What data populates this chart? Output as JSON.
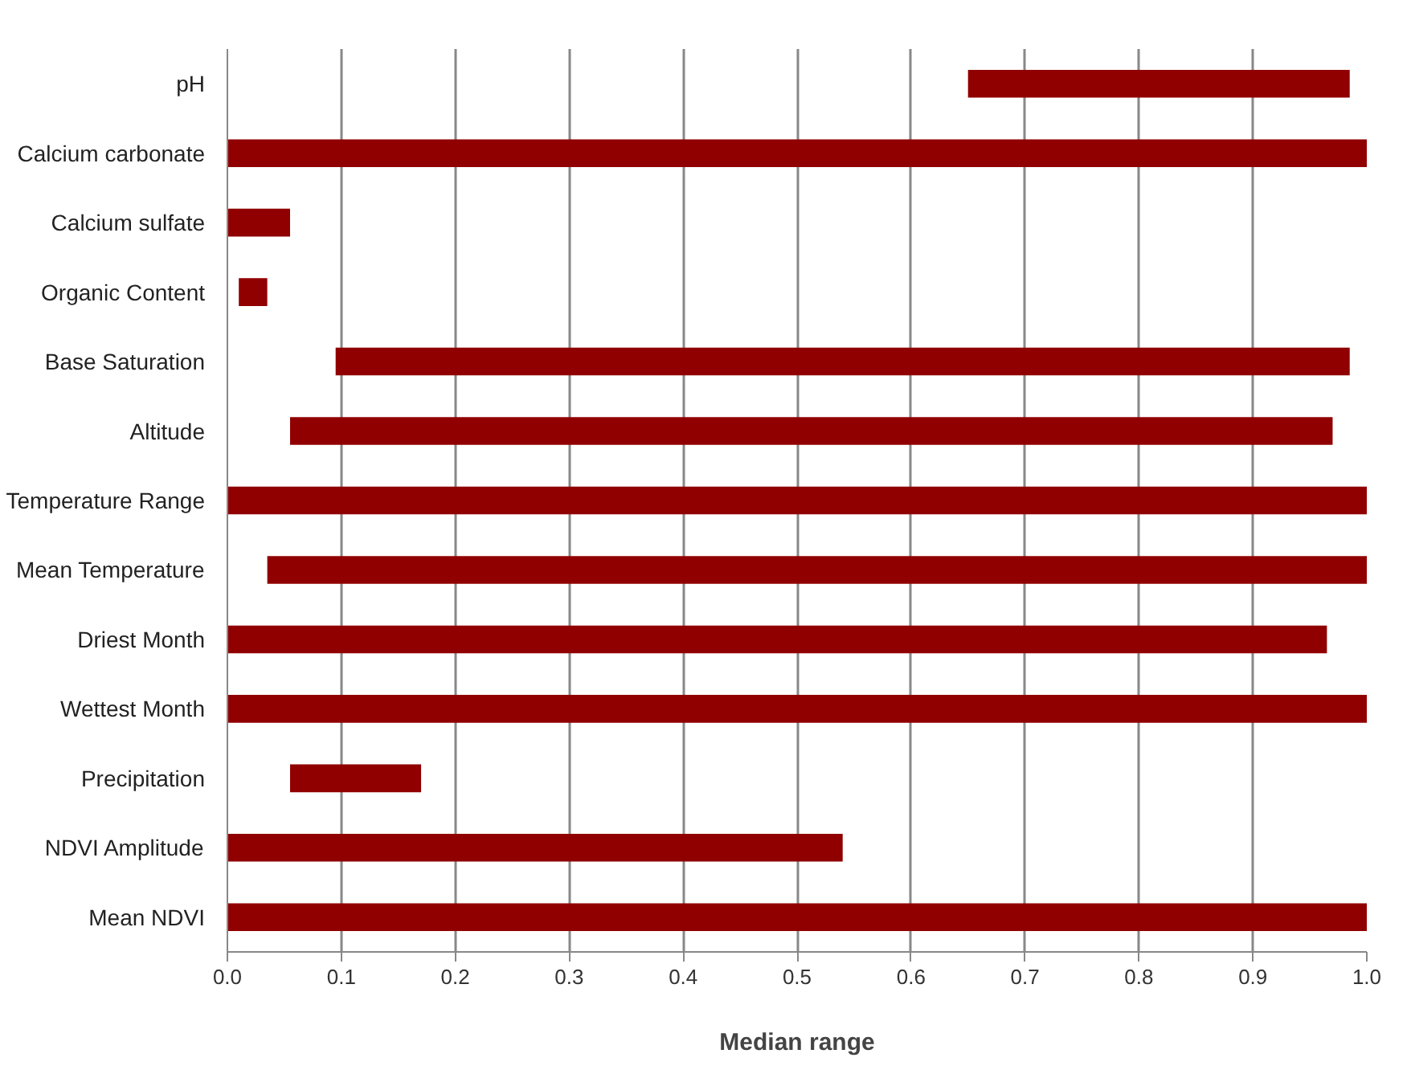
{
  "chart_data": {
    "type": "bar",
    "orientation": "horizontal",
    "xlabel": "Median range",
    "categories": [
      "pH",
      "Calcium carbonate",
      "Calcium sulfate",
      "Organic Content",
      "Base Saturation",
      "Altitude",
      "Temperature Range",
      "Mean Temperature",
      "Driest Month",
      "Wettest Month",
      "Precipitation",
      "NDVI Amplitude",
      "Mean NDVI"
    ],
    "base": [
      0.65,
      0,
      0,
      0.01,
      0.095,
      0.055,
      0,
      0.035,
      0,
      0,
      0.055,
      0,
      0
    ],
    "values": [
      0.335,
      1.0,
      0.055,
      0.025,
      0.89,
      0.915,
      1.0,
      0.965,
      0.965,
      1.0,
      0.115,
      0.54,
      1.0
    ],
    "color": "#900000",
    "xlim": [
      0,
      1.0
    ],
    "xticks": [
      {
        "value": 0,
        "label": "0.0"
      },
      0.1,
      0.2,
      0.3,
      0.4,
      0.5,
      0.6,
      0.7,
      0.8,
      0.9,
      {
        "value": 1.0,
        "label": "1.0"
      }
    ],
    "grid": "x"
  }
}
